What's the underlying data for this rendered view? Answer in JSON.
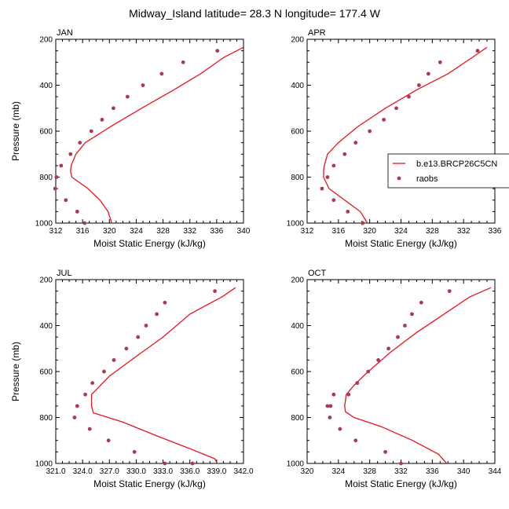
{
  "title": "Midway_Island  latitude= 28.3 N longitude= 177.4 W",
  "colors": {
    "model": "#e8141e",
    "obs": "#a83a5a"
  },
  "legend": {
    "model_label": "b.e13.BRCP26C5CN",
    "obs_label": "raobs"
  },
  "chart_data": [
    {
      "type": "line",
      "panel_title": "JAN",
      "xlabel": "Moist Static Energy (kJ/kg)",
      "ylabel": "Pressure (mb)",
      "xlim": [
        312,
        340
      ],
      "ylim": [
        1000,
        200
      ],
      "xticks": [
        "312",
        "316",
        "320",
        "324",
        "328",
        "332",
        "336",
        "340"
      ],
      "yticks": [
        "200",
        "400",
        "600",
        "800",
        "1000"
      ],
      "model": {
        "name": "b.e13.BRCP26C5CN",
        "mse": [
          340,
          337.0,
          333.6,
          329.6,
          324.8,
          320.2,
          316.4,
          315.0,
          314.3,
          314.2,
          314.4,
          316.8,
          318.6,
          319.8,
          320.4
        ],
        "pressure": [
          235,
          280,
          350,
          420,
          500,
          580,
          650,
          700,
          750,
          775,
          800,
          850,
          900,
          950,
          1005
        ]
      },
      "obs": {
        "name": "raobs",
        "mse": [
          336.1,
          331.0,
          327.8,
          325.0,
          322.7,
          320.6,
          318.9,
          317.3,
          315.6,
          314.2,
          312.8,
          312.1,
          311.9,
          313.5,
          315.2,
          316.3
        ],
        "pressure": [
          250,
          300,
          350,
          400,
          450,
          500,
          550,
          600,
          650,
          700,
          750,
          800,
          850,
          900,
          950,
          1000
        ]
      }
    },
    {
      "type": "line",
      "panel_title": "APR",
      "xlabel": "Moist Static Energy (kJ/kg)",
      "ylabel": "",
      "xlim": [
        312,
        336
      ],
      "ylim": [
        1000,
        200
      ],
      "xticks": [
        "312",
        "316",
        "320",
        "324",
        "328",
        "332",
        "336"
      ],
      "yticks": [
        "200",
        "400",
        "600",
        "800",
        "1000"
      ],
      "show_legend": true,
      "model": {
        "name": "b.e13.BRCP26C5CN",
        "mse": [
          335,
          333.3,
          330.0,
          326.0,
          322.0,
          318.5,
          316.0,
          314.6,
          314.2,
          314.1,
          314.1,
          314.8,
          316.8,
          318.8,
          319.8
        ],
        "pressure": [
          235,
          275,
          350,
          420,
          500,
          580,
          650,
          700,
          750,
          775,
          800,
          850,
          900,
          950,
          1005
        ]
      },
      "obs": {
        "name": "raobs",
        "mse": [
          333.8,
          329.0,
          327.5,
          326.3,
          325.0,
          323.4,
          321.8,
          320.0,
          318.2,
          316.8,
          315.4,
          314.6,
          313.9,
          315.4,
          317.2,
          319.1
        ],
        "pressure": [
          250,
          300,
          350,
          400,
          450,
          500,
          550,
          600,
          650,
          700,
          750,
          800,
          850,
          900,
          950,
          1000
        ]
      }
    },
    {
      "type": "line",
      "panel_title": "JUL",
      "xlabel": "Moist Static Energy (kJ/kg)",
      "ylabel": "Pressure (mb)",
      "xlim": [
        321,
        342
      ],
      "ylim": [
        1000,
        200
      ],
      "xticks": [
        "321.0",
        "324.0",
        "327.0",
        "330.0",
        "333.0",
        "336.0",
        "339.0",
        "342.0"
      ],
      "yticks": [
        "200",
        "400",
        "600",
        "800",
        "1000"
      ],
      "model": {
        "name": "b.e13.BRCP26C5CN",
        "mse": [
          341.1,
          339.6,
          336.0,
          333.0,
          329.8,
          327.0,
          325.5,
          325.0,
          325.0,
          325.2,
          328.5,
          332.3,
          336.3,
          338.8,
          339.2
        ],
        "pressure": [
          235,
          275,
          350,
          450,
          540,
          620,
          680,
          700,
          750,
          780,
          820,
          880,
          940,
          980,
          1010
        ]
      },
      "obs": {
        "name": "raobs",
        "mse": [
          338.8,
          333.2,
          332.3,
          331.1,
          330.2,
          328.9,
          327.5,
          326.4,
          325.1,
          324.3,
          323.4,
          323.1,
          324.8,
          326.9,
          329.8,
          333.2,
          336.3
        ],
        "pressure": [
          250,
          300,
          350,
          400,
          450,
          500,
          550,
          600,
          650,
          700,
          750,
          800,
          850,
          900,
          950,
          1000,
          1000
        ]
      }
    },
    {
      "type": "line",
      "panel_title": "OCT",
      "xlabel": "Moist Static Energy (kJ/kg)",
      "ylabel": "",
      "xlim": [
        320,
        344
      ],
      "ylim": [
        1000,
        200
      ],
      "xticks": [
        "320",
        "324",
        "328",
        "332",
        "336",
        "340",
        "344"
      ],
      "yticks": [
        "200",
        "400",
        "600",
        "800",
        "1000"
      ],
      "model": {
        "name": "b.e13.BRCP26C5CN",
        "mse": [
          343.5,
          340.8,
          337.5,
          334.0,
          330.5,
          327.5,
          326.0,
          325.0,
          324.8,
          324.9,
          326.0,
          329.5,
          333.5,
          336.8,
          338.1
        ],
        "pressure": [
          235,
          275,
          350,
          430,
          520,
          610,
          660,
          700,
          750,
          775,
          800,
          840,
          900,
          960,
          1010
        ]
      },
      "obs": {
        "name": "raobs",
        "mse": [
          338.2,
          334.6,
          333.4,
          332.5,
          331.6,
          330.4,
          329.1,
          327.8,
          326.4,
          325.3,
          323.4,
          323.0,
          322.6,
          322.9,
          324.2,
          326.2,
          330.0,
          332.0
        ],
        "pressure": [
          250,
          300,
          350,
          400,
          450,
          500,
          550,
          600,
          650,
          700,
          700,
          750,
          750,
          800,
          850,
          900,
          950,
          1000
        ]
      }
    }
  ]
}
